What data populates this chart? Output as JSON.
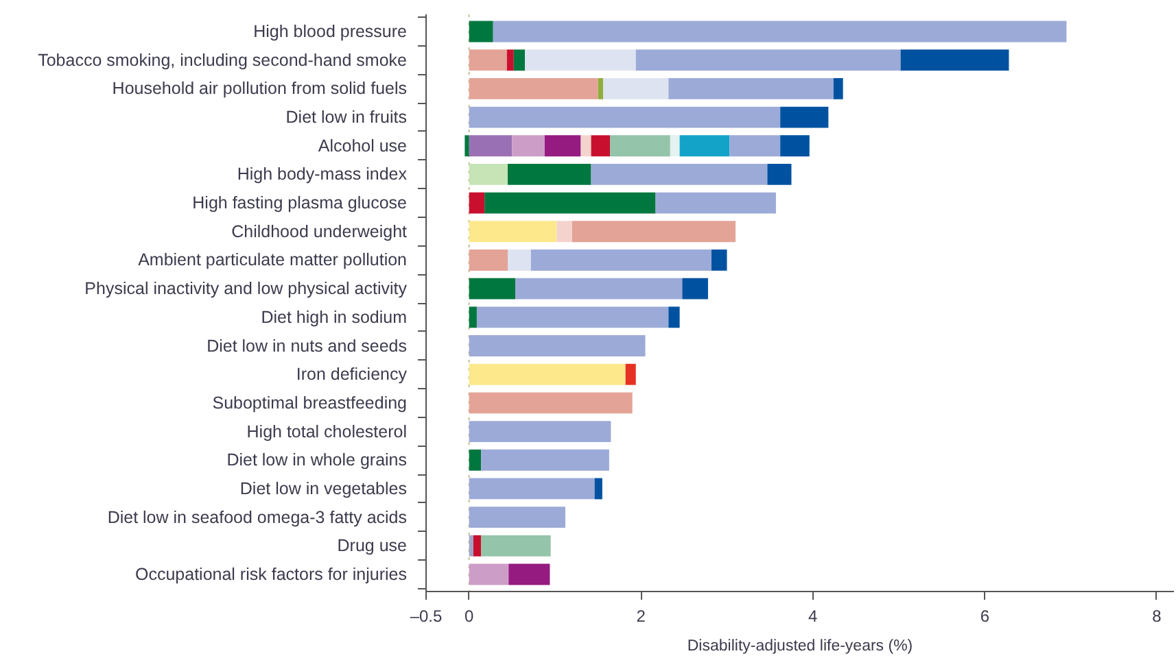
{
  "chart_data": {
    "type": "bar",
    "orientation": "horizontal",
    "stacked": true,
    "categories": [
      "High blood pressure",
      "Tobacco smoking, including second-hand smoke",
      "Household air pollution from solid fuels",
      "Diet low in fruits",
      "Alcohol use",
      "High body-mass index",
      "High fasting plasma glucose",
      "Childhood underweight",
      "Ambient particulate matter pollution",
      "Physical inactivity and low physical activity",
      "Diet high in sodium",
      "Diet low in nuts and seeds",
      "Iron deficiency",
      "Suboptimal breastfeeding",
      "High total cholesterol",
      "Diet low in whole grains",
      "Diet low in vegetables",
      "Diet low in seafood omega-3 fatty acids",
      "Drug use",
      "Occupational risk factors for injuries"
    ],
    "series": [
      {
        "color": "#fde98c",
        "values": [
          null,
          null,
          null,
          null,
          null,
          null,
          null,
          1.02,
          null,
          null,
          null,
          null,
          1.82,
          null,
          null,
          null,
          null,
          null,
          null,
          null
        ]
      },
      {
        "color": "#e63223",
        "values": [
          null,
          null,
          null,
          null,
          null,
          null,
          null,
          null,
          null,
          null,
          null,
          null,
          0.12,
          null,
          null,
          null,
          null,
          null,
          null,
          null
        ]
      },
      {
        "color": "#9a70b4",
        "values": [
          null,
          null,
          null,
          null,
          0.5,
          null,
          null,
          null,
          null,
          null,
          null,
          null,
          null,
          null,
          null,
          null,
          null,
          null,
          null,
          null
        ]
      },
      {
        "color": "#cc9dc7",
        "values": [
          null,
          null,
          null,
          null,
          0.38,
          null,
          null,
          null,
          null,
          null,
          null,
          null,
          null,
          null,
          null,
          null,
          null,
          null,
          null,
          0.46
        ]
      },
      {
        "color": "#951b81",
        "values": [
          null,
          null,
          null,
          null,
          0.42,
          null,
          null,
          null,
          null,
          null,
          null,
          null,
          null,
          null,
          null,
          null,
          null,
          null,
          null,
          0.48
        ]
      },
      {
        "color": "#f4d3cc",
        "values": [
          null,
          null,
          null,
          null,
          0.12,
          null,
          null,
          0.18,
          null,
          null,
          null,
          null,
          null,
          null,
          null,
          null,
          null,
          null,
          null,
          null
        ]
      },
      {
        "color": "#e3a397",
        "values": [
          null,
          0.44,
          1.5,
          null,
          null,
          null,
          null,
          1.9,
          0.45,
          null,
          null,
          null,
          null,
          1.9,
          null,
          null,
          null,
          null,
          null,
          null
        ]
      },
      {
        "color": "#8fae3c",
        "values": [
          null,
          null,
          0.06,
          null,
          null,
          null,
          null,
          null,
          null,
          null,
          null,
          null,
          null,
          null,
          null,
          null,
          null,
          null,
          null,
          null
        ]
      },
      {
        "color": "#9ea6c8",
        "values": [
          null,
          null,
          null,
          null,
          null,
          null,
          null,
          null,
          null,
          null,
          null,
          null,
          null,
          null,
          null,
          null,
          null,
          null,
          0.05,
          null
        ]
      },
      {
        "color": "#c8102e",
        "values": [
          null,
          0.08,
          null,
          null,
          0.22,
          null,
          0.18,
          null,
          null,
          null,
          null,
          null,
          null,
          null,
          null,
          null,
          null,
          null,
          0.09,
          null
        ]
      },
      {
        "color": "#c6e4b6",
        "values": [
          null,
          null,
          null,
          null,
          null,
          0.45,
          null,
          null,
          null,
          null,
          null,
          null,
          null,
          null,
          null,
          null,
          null,
          null,
          null,
          null
        ]
      },
      {
        "color": "#00773f",
        "values": [
          0.28,
          0.13,
          null,
          null,
          -0.05,
          0.97,
          1.99,
          null,
          null,
          0.54,
          0.09,
          null,
          null,
          null,
          null,
          0.14,
          null,
          null,
          null,
          null
        ]
      },
      {
        "color": "#94c4a9",
        "values": [
          null,
          null,
          null,
          null,
          0.7,
          null,
          null,
          null,
          null,
          null,
          null,
          null,
          null,
          null,
          null,
          null,
          null,
          null,
          0.81,
          null
        ]
      },
      {
        "color": "#e4f2f0",
        "values": [
          null,
          null,
          null,
          null,
          0.11,
          null,
          null,
          null,
          null,
          null,
          null,
          null,
          null,
          null,
          null,
          null,
          null,
          null,
          null,
          null
        ]
      },
      {
        "color": "#13a3c9",
        "values": [
          null,
          null,
          null,
          null,
          0.58,
          null,
          null,
          null,
          null,
          null,
          null,
          null,
          null,
          null,
          null,
          null,
          null,
          null,
          null,
          null
        ]
      },
      {
        "color": "#dde3f1",
        "values": [
          null,
          1.29,
          0.76,
          null,
          null,
          null,
          null,
          null,
          0.27,
          null,
          null,
          null,
          null,
          null,
          null,
          null,
          null,
          null,
          null,
          null
        ]
      },
      {
        "color": "#9caad7",
        "values": [
          6.67,
          3.08,
          1.92,
          3.62,
          0.59,
          2.05,
          1.4,
          null,
          2.1,
          1.94,
          2.23,
          2.05,
          null,
          null,
          1.65,
          1.49,
          1.46,
          1.12,
          null,
          null
        ]
      },
      {
        "color": "#0052a1",
        "values": [
          null,
          1.26,
          0.11,
          0.56,
          0.34,
          0.28,
          null,
          null,
          0.18,
          0.3,
          0.13,
          null,
          null,
          null,
          null,
          null,
          0.09,
          null,
          null,
          null
        ]
      }
    ],
    "xlim": [
      -0.5,
      8.2
    ],
    "xticks": [
      {
        "value": -0.5,
        "label": "–0.5"
      },
      0,
      2,
      4,
      6,
      8
    ],
    "xlabel": "Disability-adjusted life-years (%)",
    "ref_lines": [
      {
        "axis": "x",
        "value": 0,
        "color": "#cbbd92",
        "line_style": "dotted"
      }
    ]
  }
}
